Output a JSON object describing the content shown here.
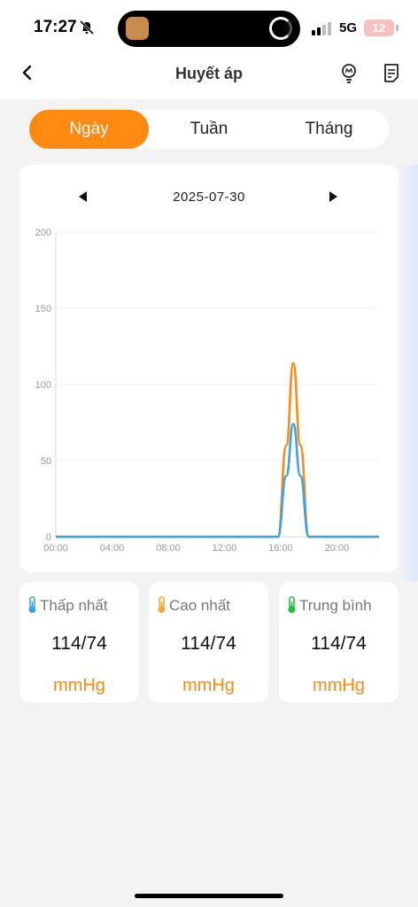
{
  "status_bar": {
    "time": "17:27",
    "network": "5G",
    "battery": "12"
  },
  "header": {
    "title": "Huyết áp"
  },
  "tabs": [
    {
      "label": "Ngày",
      "active": true
    },
    {
      "label": "Tuần",
      "active": false
    },
    {
      "label": "Tháng",
      "active": false
    }
  ],
  "date": {
    "label": "2025-07-30"
  },
  "colors": {
    "accent": "#ff8a12",
    "systolic": "#ff8a12",
    "diastolic": "#3aa3e8",
    "min_icon": "#3aa3e8",
    "max_icon": "#ffa63d",
    "avg_icon": "#1fbf3a"
  },
  "chart_data": {
    "type": "line",
    "x_ticks": [
      "00:00",
      "04:00",
      "08:00",
      "12:00",
      "16:00",
      "20:00"
    ],
    "y_ticks": [
      "0",
      "50",
      "100",
      "150",
      "200"
    ],
    "xlim": [
      0,
      23
    ],
    "ylim": [
      0,
      200
    ],
    "series": [
      {
        "color": "#ff8a12",
        "x": [
          0,
          15.8,
          16.4,
          16.9,
          17.4,
          18.0,
          23
        ],
        "y": [
          0,
          0,
          60,
          114,
          60,
          0,
          0
        ]
      },
      {
        "color": "#3aa3e8",
        "x": [
          0,
          15.8,
          16.4,
          16.9,
          17.4,
          18.0,
          23
        ],
        "y": [
          0,
          0,
          40,
          74,
          40,
          0,
          0
        ]
      }
    ]
  },
  "stats": [
    {
      "label": "Thấp nhất",
      "value": "114/74",
      "unit": "mmHg",
      "icon": "thermometer-blue-icon"
    },
    {
      "label": "Cao nhất",
      "value": "114/74",
      "unit": "mmHg",
      "icon": "thermometer-orange-icon"
    },
    {
      "label": "Trung bình",
      "value": "114/74",
      "unit": "mmHg",
      "icon": "thermometer-green-icon"
    }
  ]
}
